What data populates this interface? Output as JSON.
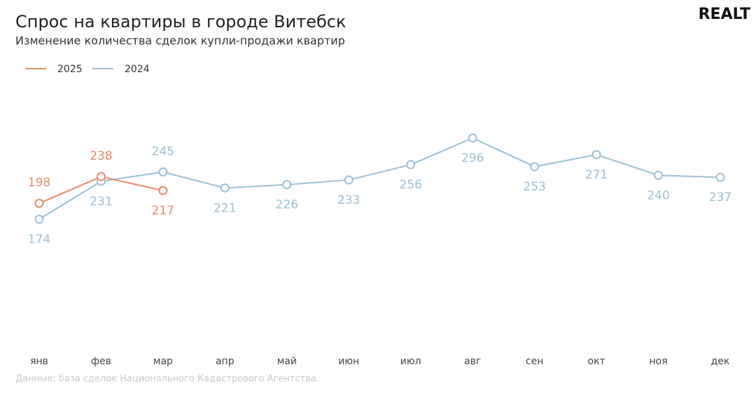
{
  "logo": "REALT",
  "chart_data": {
    "type": "line",
    "title": "Спрос на квартиры в городе Витебск",
    "subtitle": "Изменение количества сделок купли-продажи квартир",
    "source": "Данные: база сделок Национального Кадастрового Агентства.",
    "categories": [
      "янв",
      "фев",
      "мар",
      "апр",
      "май",
      "июн",
      "июл",
      "авг",
      "сен",
      "окт",
      "ноя",
      "дек"
    ],
    "series": [
      {
        "name": "2025",
        "color": "#e8896b",
        "values": [
          198,
          238,
          217,
          null,
          null,
          null,
          null,
          null,
          null,
          null,
          null,
          null
        ]
      },
      {
        "name": "2024",
        "color": "#9bbfd6",
        "values": [
          174,
          231,
          245,
          221,
          226,
          233,
          256,
          296,
          253,
          271,
          240,
          237
        ]
      }
    ]
  }
}
